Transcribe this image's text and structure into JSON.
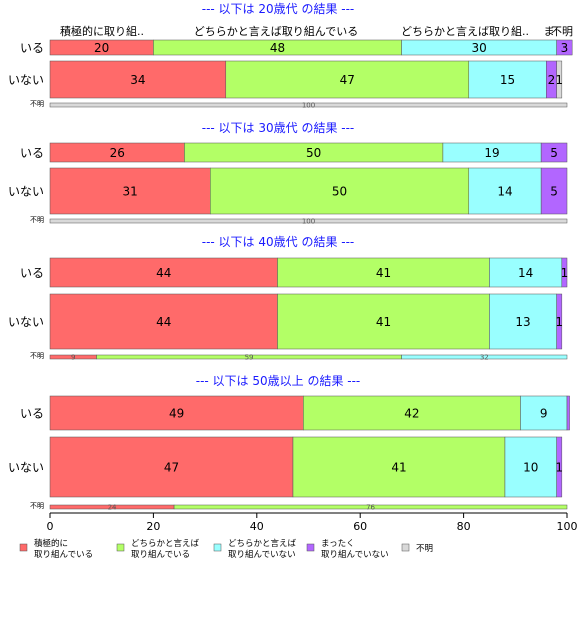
{
  "chart_data": {
    "type": "bar",
    "orientation": "horizontal",
    "stacked": "percent",
    "series": [
      {
        "name": "積極的に\n取り組んでいる",
        "color": "#FF6A6A"
      },
      {
        "name": "どちらかと言えば\n取り組んでいる",
        "color": "#B3FF66"
      },
      {
        "name": "どちらかと言えば\n取り組んでいない",
        "color": "#99FFFF"
      },
      {
        "name": "まったく\n取り組んでいない",
        "color": "#B266FF"
      },
      {
        "name": "不明",
        "color": "#D9D9D9"
      }
    ],
    "header_labels": [
      "積極的に取り組..",
      "どちらかと言えば取り組んでいる",
      "どちらかと言えば取り組..",
      "ま",
      "不明"
    ],
    "panels": [
      {
        "title": "--- 以下は 20歳代 の結果 ---",
        "rows": [
          {
            "label": "いる",
            "values": [
              20,
              48,
              30,
              3,
              0
            ],
            "labels": [
              "20",
              "48",
              "30",
              "3",
              ""
            ]
          },
          {
            "label": "いない",
            "values": [
              34,
              47,
              15,
              2,
              1
            ],
            "labels": [
              "34",
              "47",
              "15",
              "2",
              "1"
            ]
          }
        ],
        "unknown": {
          "label": "不明",
          "values": [
            0,
            0,
            0,
            0,
            100
          ],
          "labels": [
            "",
            "",
            "",
            "",
            "100"
          ]
        }
      },
      {
        "title": "--- 以下は 30歳代 の結果 ---",
        "rows": [
          {
            "label": "いる",
            "values": [
              26,
              50,
              19,
              5,
              0
            ],
            "labels": [
              "26",
              "50",
              "19",
              "5",
              ""
            ]
          },
          {
            "label": "いない",
            "values": [
              31,
              50,
              14,
              5,
              0
            ],
            "labels": [
              "31",
              "50",
              "14",
              "5",
              ""
            ]
          }
        ],
        "unknown": {
          "label": "不明",
          "values": [
            0,
            0,
            0,
            0,
            100
          ],
          "labels": [
            "",
            "",
            "",
            "",
            "100"
          ]
        }
      },
      {
        "title": "--- 以下は 40歳代 の結果 ---",
        "rows": [
          {
            "label": "いる",
            "values": [
              44,
              41,
              14,
              1,
              0
            ],
            "labels": [
              "44",
              "41",
              "14",
              "1",
              ""
            ]
          },
          {
            "label": "いない",
            "values": [
              44,
              41,
              13,
              1,
              0
            ],
            "labels": [
              "44",
              "41",
              "13",
              "1",
              ""
            ]
          }
        ],
        "unknown": {
          "label": "不明",
          "values": [
            9,
            59,
            32,
            0,
            0
          ],
          "labels": [
            "9",
            "59",
            "32",
            "",
            ""
          ]
        }
      },
      {
        "title": "--- 以下は 50歳以上 の結果 ---",
        "rows": [
          {
            "label": "いる",
            "values": [
              49,
              42,
              9,
              0.5,
              0
            ],
            "labels": [
              "49",
              "42",
              "9",
              "",
              ""
            ]
          },
          {
            "label": "いない",
            "values": [
              47,
              41,
              10,
              1,
              0
            ],
            "labels": [
              "47",
              "41",
              "10",
              "1",
              ""
            ]
          }
        ],
        "unknown": {
          "label": "不明",
          "values": [
            24,
            76,
            0,
            0,
            0
          ],
          "labels": [
            "24",
            "76",
            "",
            "",
            ""
          ]
        }
      }
    ],
    "xlim": [
      0,
      100
    ],
    "xticks": [
      "0",
      "20",
      "40",
      "60",
      "80",
      "100"
    ],
    "legend_position": "bottom",
    "grid": false
  }
}
